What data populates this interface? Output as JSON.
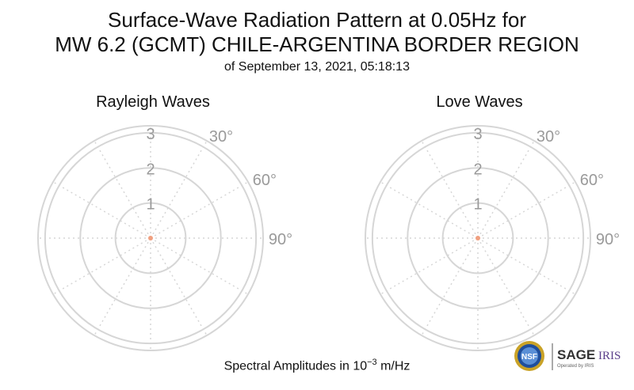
{
  "title": {
    "line1": "Surface-Wave Radiation Pattern at 0.05Hz for",
    "line2": "MW 6.2 (GCMT) CHILE-ARGENTINA BORDER REGION",
    "line3": "of September 13, 2021, 05:18:13"
  },
  "chart_data": [
    {
      "type": "polar",
      "title": "Rayleigh Waves",
      "r_ticks": [
        "1",
        "2",
        "3"
      ],
      "rlim": [
        0,
        3.2
      ],
      "theta_ticks": [
        "30°",
        "60°",
        "90°"
      ],
      "grid": true,
      "series": [
        {
          "theta": [
            0
          ],
          "r": [
            0
          ]
        }
      ]
    },
    {
      "type": "polar",
      "title": "Love Waves",
      "r_ticks": [
        "1",
        "2",
        "3"
      ],
      "rlim": [
        0,
        3.2
      ],
      "theta_ticks": [
        "30°",
        "60°",
        "90°"
      ],
      "grid": true,
      "series": [
        {
          "theta": [
            0
          ],
          "r": [
            0
          ]
        }
      ]
    }
  ],
  "footer": {
    "label": "Spectral Amplitudes in 10",
    "exponent": "−3",
    "unit": " m/Hz"
  },
  "logos": {
    "nsf_text": "NSF",
    "sage_text": "SAGE",
    "iris_text": "IRIS",
    "operated_text": "Operated by IRIS"
  },
  "colors": {
    "grid": "#d6d6d6",
    "tick_text": "#9a9a9a",
    "marker": "#f0a080"
  }
}
